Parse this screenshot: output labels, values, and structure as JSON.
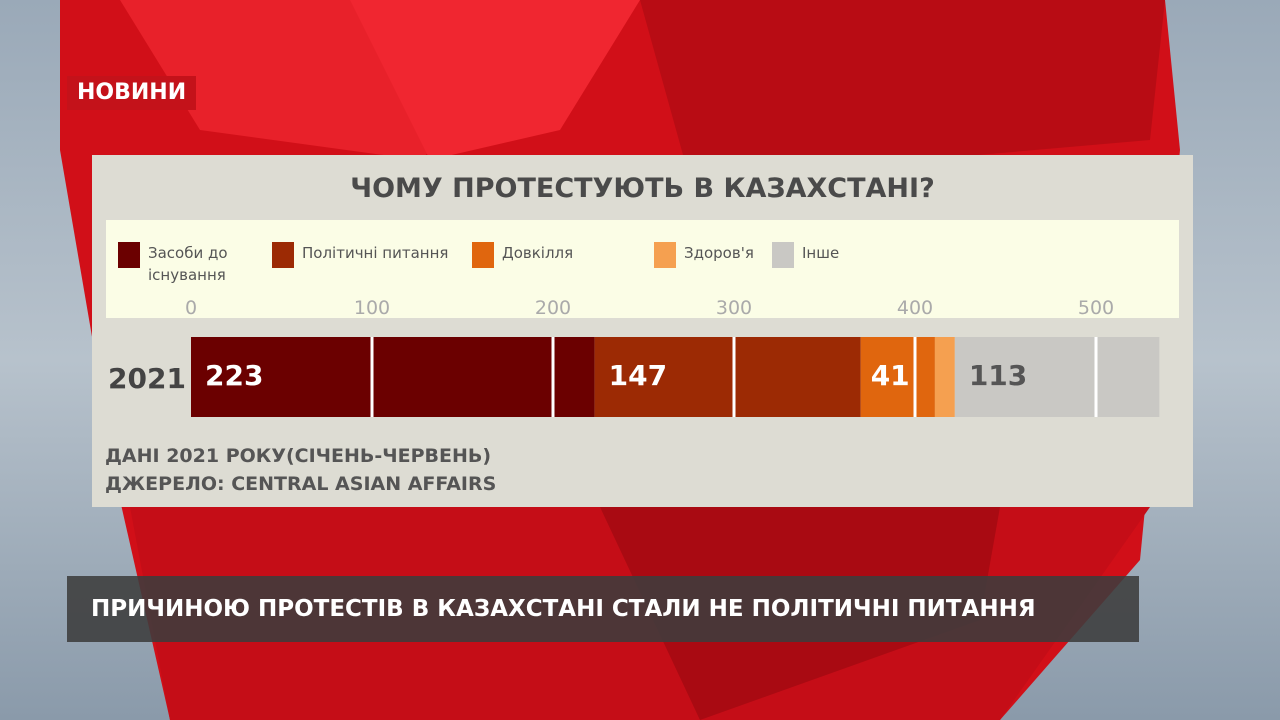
{
  "badge": "НОВИНИ",
  "chart_data": {
    "type": "bar",
    "orientation": "horizontal-stacked",
    "title": "ЧОМУ ПРОТЕСТУЮТЬ В КАЗАХСТАНІ?",
    "categories": [
      "2021"
    ],
    "series": [
      {
        "name": "Засоби до існування",
        "values": [
          223
        ],
        "color": "#6b0000",
        "label": "223"
      },
      {
        "name": "Політичні питання",
        "values": [
          147
        ],
        "color": "#9c2a04",
        "label": "147"
      },
      {
        "name": "Довкілля",
        "values": [
          41
        ],
        "color": "#e0660e",
        "label": "41"
      },
      {
        "name": "Здоров'я",
        "values": [
          11
        ],
        "color": "#f5a050",
        "label": ""
      },
      {
        "name": "Інше",
        "values": [
          113
        ],
        "color": "#c9c8c4",
        "label": "113"
      }
    ],
    "xticks": [
      "0",
      "100",
      "200",
      "300",
      "400",
      "500"
    ],
    "xlim": [
      0,
      535
    ],
    "grid": true,
    "legend": "top"
  },
  "notes": {
    "line1": "ДАНІ 2021 РОКУ(СІЧЕНЬ-ЧЕРВЕНЬ)",
    "line2": "ДЖЕРЕЛО:   CENTRAL ASIAN AFFAIRS"
  },
  "ticker": "ПРИЧИНОЮ ПРОТЕСТІВ В КАЗАХСТАНІ СТАЛИ НЕ ПОЛІТИЧНІ ПИТАННЯ"
}
